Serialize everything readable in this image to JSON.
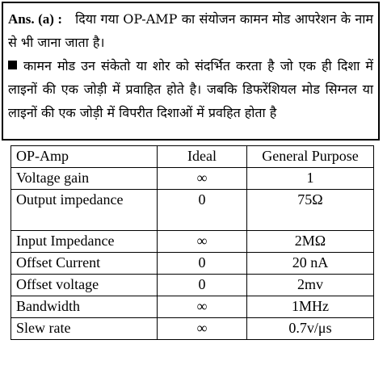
{
  "answer": {
    "label": "Ans. (a) :",
    "paragraph1": "दिया गया OP-AMP का संयोजन कामन मोड आपरेशन के नाम से भी जाना जाता है।",
    "paragraph2": "कामन मोड उन संकेतो या शोर को संदर्भित करता है जो एक ही दिशा में लाइनों की एक जोड़ी में प्रवाहित होते है। जबकि डिफरेंशियल मोड सिग्नल या लाइनों की एक जोड़ी में विपरीत दिशाओं में प्रवहित होता है"
  },
  "table": {
    "headers": {
      "param": "OP-Amp",
      "ideal": "Ideal",
      "general": "General Purpose"
    },
    "rows": [
      {
        "param": "Voltage gain",
        "ideal": "∞",
        "general": "1"
      },
      {
        "param": "Output impedance",
        "ideal": "0",
        "general": "75Ω"
      },
      {
        "param": "Input Impedance",
        "ideal": "∞",
        "general": "2MΩ"
      },
      {
        "param": "Offset Current",
        "ideal": "0",
        "general": "20 nA"
      },
      {
        "param": "Offset voltage",
        "ideal": "0",
        "general": "2mv"
      },
      {
        "param": "Bandwidth",
        "ideal": "∞",
        "general": "1MHz"
      },
      {
        "param": "Slew rate",
        "ideal": "∞",
        "general": "0.7v/μs"
      }
    ]
  }
}
